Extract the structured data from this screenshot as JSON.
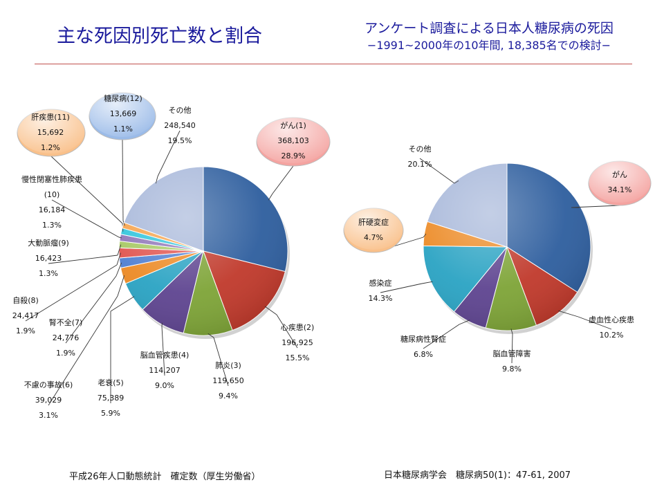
{
  "header": {
    "title": "主な死因別死亡数と割合",
    "right_title": "アンケート調査による日本人糖尿病の死因",
    "right_subtitle": "−1991~2000年の10年間, 18,385名での検討−"
  },
  "footer": {
    "left_source": "平成26年人口動態統計　確定数（厚生労働省）",
    "right_source": "日本糖尿病学会　糖尿病50(1)：47-61, 2007"
  },
  "chart_data": [
    {
      "type": "pie",
      "name": "主な死因別死亡数と割合",
      "slices": [
        {
          "label": "がん(1)",
          "count": "368,103",
          "pct": 28.9,
          "pct_label": "28.9%",
          "color": "#2e5e9e",
          "bubble": true,
          "bubble_color": "#f4a3a0"
        },
        {
          "label": "心疾患(2)",
          "count": "196,925",
          "pct": 15.5,
          "pct_label": "15.5%",
          "color": "#c0392b"
        },
        {
          "label": "肺炎(3)",
          "count": "119,650",
          "pct": 9.4,
          "pct_label": "9.4%",
          "color": "#7ea437"
        },
        {
          "label": "脳血管疾患(4)",
          "count": "114,207",
          "pct": 9.0,
          "pct_label": "9.0%",
          "color": "#5e4490"
        },
        {
          "label": "老衰(5)",
          "count": "75,389",
          "pct": 5.9,
          "pct_label": "5.9%",
          "color": "#2aa3c3"
        },
        {
          "label": "不慮の事故(6)",
          "count": "39,029",
          "pct": 3.1,
          "pct_label": "3.1%",
          "color": "#ec8a25"
        },
        {
          "label": "腎不全(7)",
          "count": "24,776",
          "pct": 1.9,
          "pct_label": "1.9%",
          "color": "#4f7fd1"
        },
        {
          "label": "自殺(8)",
          "count": "24,417",
          "pct": 1.9,
          "pct_label": "1.9%",
          "color": "#e0534e"
        },
        {
          "label": "大動脈瘤(9)",
          "count": "16,423",
          "pct": 1.3,
          "pct_label": "1.3%",
          "color": "#a6c862"
        },
        {
          "label": "慢性閉塞性肺疾患(10)",
          "count": "16,184",
          "pct": 1.3,
          "pct_label": "1.3%",
          "color": "#8e74b8"
        },
        {
          "label": "肝疾患(11)",
          "count": "15,692",
          "pct": 1.2,
          "pct_label": "1.2%",
          "color": "#2fc4dc",
          "bubble": true,
          "bubble_color": "#f9c08a"
        },
        {
          "label": "糖尿病(12)",
          "count": "13,669",
          "pct": 1.1,
          "pct_label": "1.1%",
          "color": "#f6a24a",
          "bubble": true,
          "bubble_color": "#9bbbe8"
        },
        {
          "label": "その他",
          "count": "248,540",
          "pct": 19.5,
          "pct_label": "19.5%",
          "color": "#a8b8da"
        }
      ]
    },
    {
      "type": "pie",
      "name": "アンケート調査による日本人糖尿病の死因",
      "slices": [
        {
          "label": "がん",
          "pct": 34.1,
          "pct_label": "34.1%",
          "color": "#2e5e9e",
          "bubble": true,
          "bubble_color": "#f4a3a0"
        },
        {
          "label": "虚血性心疾患",
          "pct": 10.2,
          "pct_label": "10.2%",
          "color": "#c0392b"
        },
        {
          "label": "脳血管障害",
          "pct": 9.8,
          "pct_label": "9.8%",
          "color": "#7ea437"
        },
        {
          "label": "糖尿病性腎症",
          "pct": 6.8,
          "pct_label": "6.8%",
          "color": "#5e4490"
        },
        {
          "label": "感染症",
          "pct": 14.3,
          "pct_label": "14.3%",
          "color": "#2aa3c3"
        },
        {
          "label": "肝硬変症",
          "pct": 4.7,
          "pct_label": "4.7%",
          "color": "#ec8a25",
          "bubble": true,
          "bubble_color": "#f9c08a"
        },
        {
          "label": "その他",
          "pct": 20.1,
          "pct_label": "20.1%",
          "color": "#a8b8da"
        }
      ]
    }
  ]
}
